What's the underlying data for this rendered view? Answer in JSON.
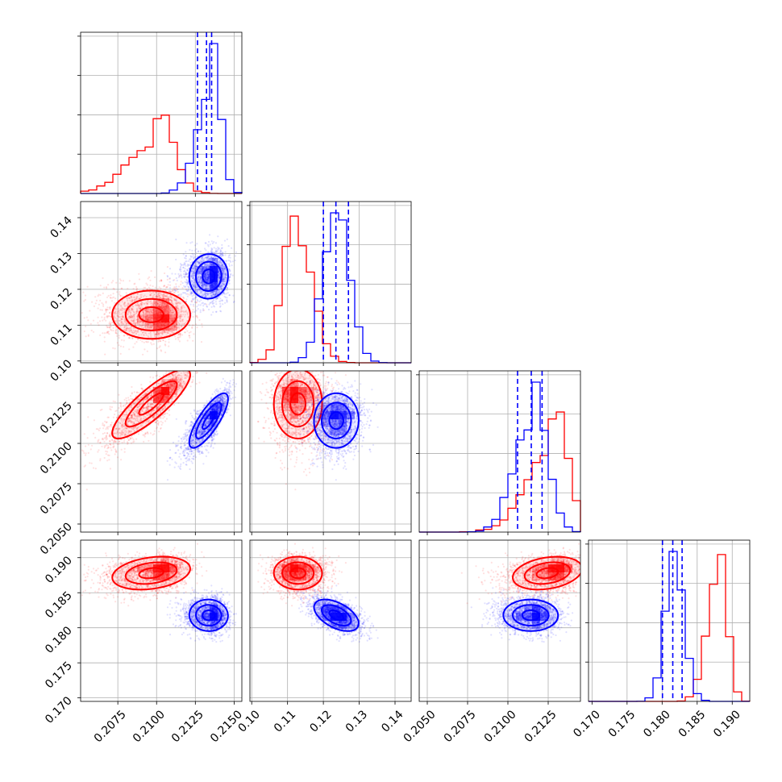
{
  "chart_data": {
    "type": "corner",
    "parameters": [
      {
        "range": [
          0.2051,
          0.2155
        ],
        "ticks": [
          "0.2075",
          "0.2100",
          "0.2125",
          "0.2150"
        ],
        "tick_values": [
          0.2075,
          0.21,
          0.2125,
          0.215
        ]
      },
      {
        "range": [
          0.0995,
          0.1445
        ],
        "ticks": [
          "0.10",
          "0.11",
          "0.12",
          "0.13",
          "0.14"
        ],
        "tick_values": [
          0.1,
          0.11,
          0.12,
          0.13,
          0.14
        ]
      },
      {
        "range": [
          0.2045,
          0.2145
        ],
        "ticks": [
          "0.2050",
          "0.2075",
          "0.2100",
          "0.2125"
        ],
        "tick_values": [
          0.205,
          0.2075,
          0.21,
          0.2125
        ]
      },
      {
        "range": [
          0.1695,
          0.1925
        ],
        "ticks": [
          "0.170",
          "0.175",
          "0.180",
          "0.185",
          "0.190"
        ],
        "tick_values": [
          0.17,
          0.175,
          0.18,
          0.185,
          0.19
        ]
      }
    ],
    "series": [
      {
        "color": "#ff0000",
        "means": [
          0.21,
          0.1125,
          0.2127,
          0.188
        ],
        "sigmas": [
          0.001,
          0.0033,
          0.0009,
          0.0011
        ],
        "correlation": [
          [
            1,
            0.0,
            0.85,
            0.3
          ],
          [
            0.0,
            1,
            0.0,
            0.0
          ],
          [
            0.85,
            0.0,
            1,
            0.3
          ],
          [
            0.3,
            0.0,
            0.3,
            1
          ]
        ],
        "skew": [
          -0.6,
          0.2,
          -0.5,
          -0.3
        ]
      },
      {
        "color": "#0000ff",
        "means": [
          0.2135,
          0.1235,
          0.2115,
          0.1818
        ],
        "sigmas": [
          0.0005,
          0.0035,
          0.0008,
          0.0013
        ],
        "correlation": [
          [
            1,
            0.0,
            0.8,
            0.0
          ],
          [
            0.0,
            1,
            0.0,
            -0.5
          ],
          [
            0.8,
            0.0,
            1,
            0.0
          ],
          [
            0.0,
            -0.5,
            0.0,
            1
          ]
        ],
        "skew": [
          -0.6,
          0.0,
          -0.3,
          0.0
        ]
      }
    ],
    "quantile_lines": {
      "color": "#0000ff",
      "style": "dashed",
      "values": [
        [
          0.21264,
          0.21322,
          0.21355
        ],
        [
          0.12,
          0.1235,
          0.127
        ],
        [
          0.2106,
          0.21145,
          0.21212
        ],
        [
          0.18005,
          0.18152,
          0.18285
        ]
      ]
    },
    "grid": true,
    "hist_bins": 20,
    "contour_levels": 3
  }
}
